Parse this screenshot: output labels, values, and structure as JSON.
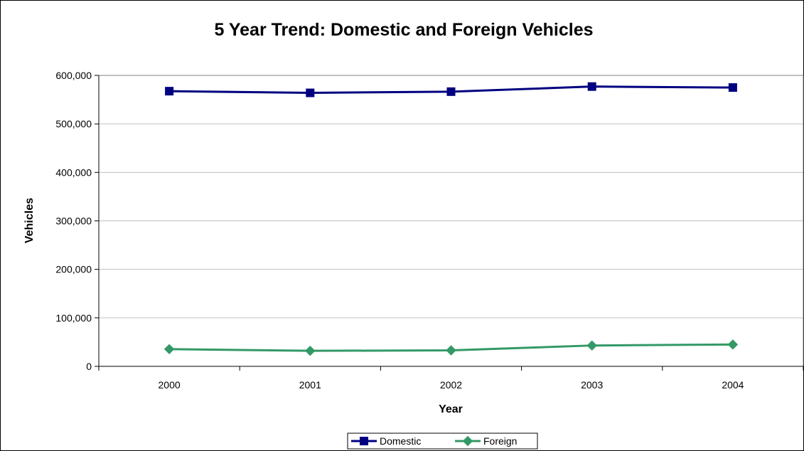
{
  "chart_data": {
    "type": "line",
    "title": "5 Year Trend: Domestic and Foreign Vehicles",
    "xlabel": "Year",
    "ylabel": "Vehicles",
    "categories": [
      "2000",
      "2001",
      "2002",
      "2003",
      "2004"
    ],
    "ylim": [
      0,
      600000
    ],
    "yticks": [
      0,
      100000,
      200000,
      300000,
      400000,
      500000,
      600000
    ],
    "ytick_labels": [
      "0",
      "100,000",
      "200,000",
      "300,000",
      "400,000",
      "500,000",
      "600,000"
    ],
    "grid": true,
    "legend_position": "bottom",
    "series": [
      {
        "name": "Domestic",
        "values": [
          567500,
          564000,
          566500,
          577000,
          575000
        ],
        "color": "#000080",
        "marker": "square"
      },
      {
        "name": "Foreign",
        "values": [
          35500,
          32000,
          33000,
          43000,
          45000
        ],
        "color": "#339966",
        "marker": "diamond"
      }
    ]
  }
}
